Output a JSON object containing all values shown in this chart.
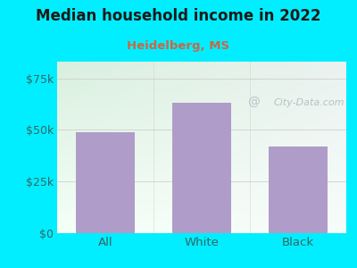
{
  "title": "Median household income in 2022",
  "subtitle": "Heidelberg, MS",
  "categories": [
    "All",
    "White",
    "Black"
  ],
  "values": [
    49000,
    63000,
    42000
  ],
  "bar_color": "#b09cc8",
  "title_color": "#1a1a1a",
  "subtitle_color": "#cc6644",
  "background_color": "#00eeff",
  "plot_bg_top_left": "#d8eedc",
  "plot_bg_top_right": "#e8f0ee",
  "plot_bg_bottom": "#f8fef8",
  "yticks": [
    0,
    25000,
    50000,
    75000
  ],
  "ytick_labels": [
    "$0",
    "$25k",
    "$50k",
    "$75k"
  ],
  "ylim": [
    0,
    83000
  ],
  "grid_color": "#cccccc",
  "watermark_text": "City-Data.com",
  "watermark_color": "#aabbbb",
  "tick_label_color": "#336666"
}
